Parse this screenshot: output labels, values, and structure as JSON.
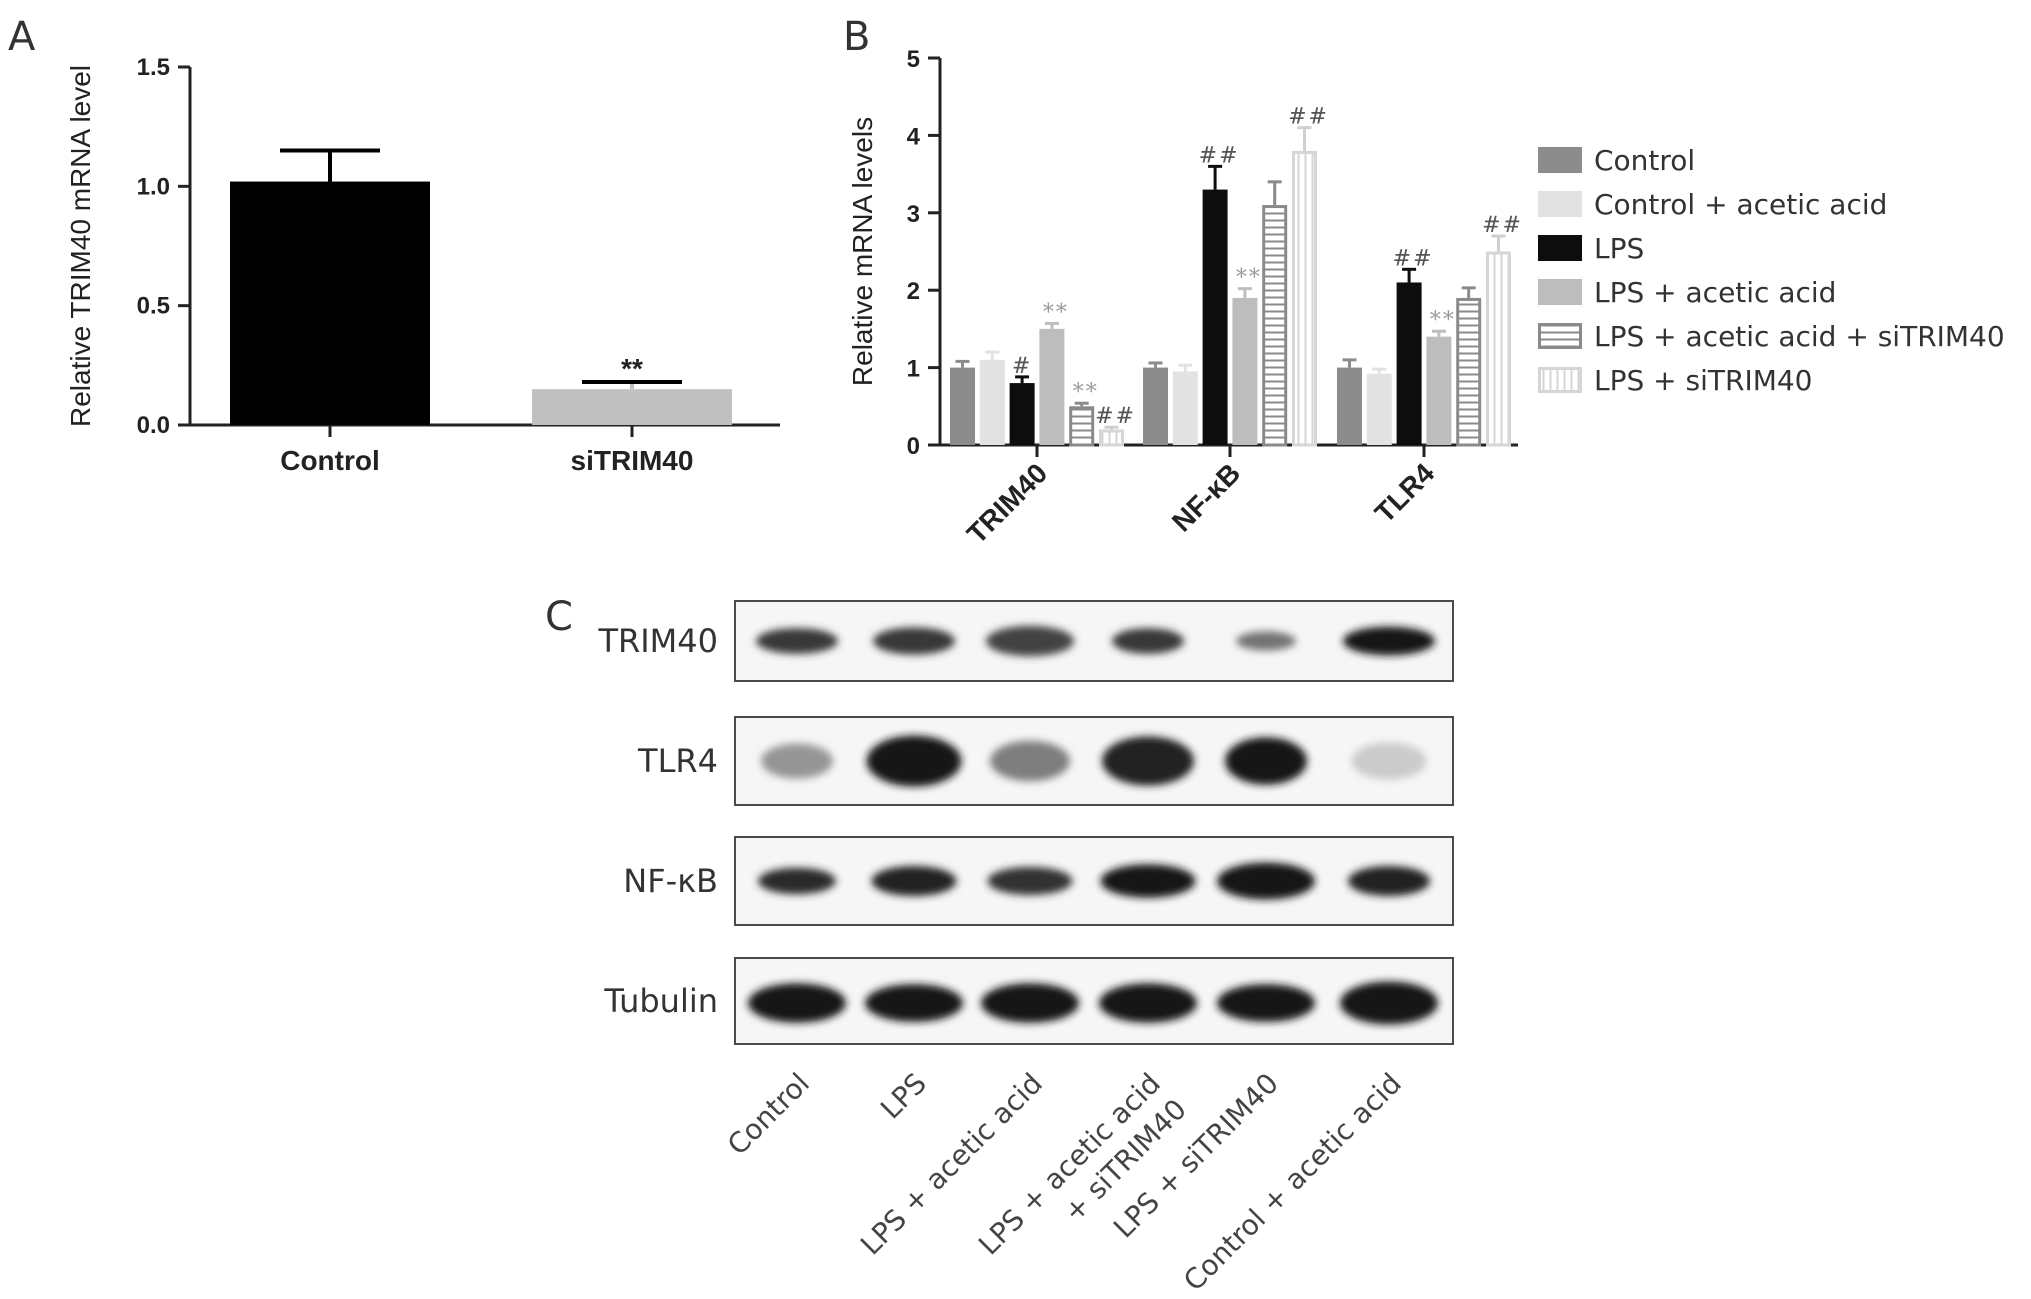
{
  "panels": {
    "a": {
      "letter": "A"
    },
    "b": {
      "letter": "B"
    },
    "c": {
      "letter": "C"
    }
  },
  "colors": {
    "control": "#8c8c8c",
    "control_acetic": "#e2e2e2",
    "lps": "#0d0d0d",
    "lps_acetic": "#bdbdbd",
    "lps_acetic_si_stroke": "#8a8a8a",
    "lps_si_stroke": "#d6d6d6",
    "sig_dark": "#555555",
    "sig_light": "#9a9a9a"
  },
  "chart_data": [
    {
      "type": "bar",
      "panel": "A",
      "ylabel": "Relative TRIM40 mRNA level",
      "ylim": [
        0,
        1.5
      ],
      "yticks": [
        "0.0",
        "0.5",
        "1.0",
        "1.5"
      ],
      "categories": [
        "Control",
        "siTRIM40"
      ],
      "values": [
        1.02,
        0.15
      ],
      "errors": [
        0.13,
        0.03
      ],
      "bar_colors": [
        "#000000",
        "#c0c0c0"
      ],
      "annotations": [
        "",
        "**"
      ]
    },
    {
      "type": "bar",
      "panel": "B",
      "ylabel": "Relative mRNA levels",
      "ylim": [
        0,
        5
      ],
      "yticks": [
        "0",
        "1",
        "2",
        "3",
        "4",
        "5"
      ],
      "categories": [
        "TRIM40",
        "NF-κB",
        "TLR4"
      ],
      "legend_position": "right",
      "series": [
        {
          "name": "Control",
          "style": "control",
          "values": [
            1.0,
            1.0,
            1.0
          ],
          "errors": [
            0.08,
            0.06,
            0.1
          ],
          "annotations": [
            "",
            "",
            ""
          ]
        },
        {
          "name": "Control + acetic acid",
          "style": "control_acetic",
          "values": [
            1.1,
            0.95,
            0.92
          ],
          "errors": [
            0.1,
            0.08,
            0.06
          ],
          "annotations": [
            "",
            "",
            ""
          ]
        },
        {
          "name": "LPS",
          "style": "lps",
          "values": [
            0.8,
            3.3,
            2.1
          ],
          "errors": [
            0.08,
            0.3,
            0.17
          ],
          "annotations": [
            "#",
            "##",
            "##"
          ]
        },
        {
          "name": "LPS + acetic acid",
          "style": "lps_acetic",
          "values": [
            1.5,
            1.9,
            1.4
          ],
          "errors": [
            0.07,
            0.12,
            0.07
          ],
          "annotations": [
            "**",
            "**",
            "**"
          ]
        },
        {
          "name": "LPS + acetic acid + siTRIM40",
          "style": "lps_acetic_si",
          "values": [
            0.5,
            3.1,
            1.9
          ],
          "errors": [
            0.04,
            0.3,
            0.13
          ],
          "annotations": [
            "**",
            "",
            ""
          ]
        },
        {
          "name": "LPS + siTRIM40",
          "style": "lps_si",
          "values": [
            0.2,
            3.8,
            2.5
          ],
          "errors": [
            0.03,
            0.3,
            0.2
          ],
          "annotations": [
            "##",
            "##",
            "##"
          ]
        }
      ]
    }
  ],
  "blot": {
    "rows": [
      {
        "label": "TRIM40",
        "bands": [
          {
            "i": 0.85,
            "w": 0.82,
            "h": 0.32
          },
          {
            "i": 0.85,
            "w": 0.82,
            "h": 0.34
          },
          {
            "i": 0.8,
            "w": 0.88,
            "h": 0.38
          },
          {
            "i": 0.85,
            "w": 0.72,
            "h": 0.32
          },
          {
            "i": 0.6,
            "w": 0.6,
            "h": 0.24
          },
          {
            "i": 1.0,
            "w": 0.92,
            "h": 0.36
          }
        ]
      },
      {
        "label": "TLR4",
        "bands": [
          {
            "i": 0.45,
            "w": 0.72,
            "h": 0.4
          },
          {
            "i": 1.0,
            "w": 0.95,
            "h": 0.58
          },
          {
            "i": 0.55,
            "w": 0.8,
            "h": 0.46
          },
          {
            "i": 0.95,
            "w": 0.92,
            "h": 0.56
          },
          {
            "i": 1.0,
            "w": 0.82,
            "h": 0.54
          },
          {
            "i": 0.22,
            "w": 0.75,
            "h": 0.42
          }
        ]
      },
      {
        "label": "NF-κB",
        "bands": [
          {
            "i": 0.9,
            "w": 0.78,
            "h": 0.3
          },
          {
            "i": 0.95,
            "w": 0.85,
            "h": 0.34
          },
          {
            "i": 0.88,
            "w": 0.85,
            "h": 0.32
          },
          {
            "i": 1.0,
            "w": 0.95,
            "h": 0.38
          },
          {
            "i": 1.0,
            "w": 0.98,
            "h": 0.42
          },
          {
            "i": 0.95,
            "w": 0.82,
            "h": 0.34
          }
        ]
      },
      {
        "label": "Tubulin",
        "bands": [
          {
            "i": 1.0,
            "w": 0.98,
            "h": 0.46
          },
          {
            "i": 1.0,
            "w": 0.98,
            "h": 0.44
          },
          {
            "i": 1.0,
            "w": 0.98,
            "h": 0.46
          },
          {
            "i": 1.0,
            "w": 0.98,
            "h": 0.46
          },
          {
            "i": 1.0,
            "w": 0.98,
            "h": 0.44
          },
          {
            "i": 1.0,
            "w": 0.98,
            "h": 0.5
          }
        ]
      }
    ],
    "lanes": [
      {
        "lines": [
          "Control"
        ]
      },
      {
        "lines": [
          "LPS"
        ]
      },
      {
        "lines": [
          "LPS + acetic acid"
        ]
      },
      {
        "lines": [
          "LPS + acetic acid",
          "+ siTRIM40"
        ]
      },
      {
        "lines": [
          "LPS + siTRIM40"
        ]
      },
      {
        "lines": [
          "Control + acetic acid"
        ]
      }
    ]
  }
}
